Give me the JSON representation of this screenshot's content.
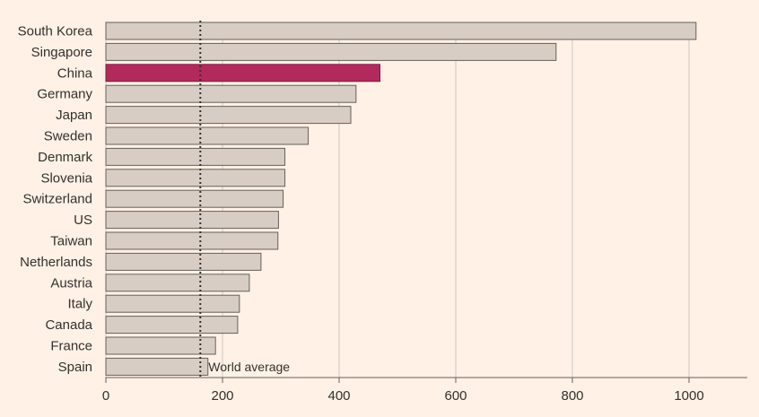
{
  "chart_data": {
    "type": "bar",
    "orientation": "horizontal",
    "categories": [
      "South Korea",
      "Singapore",
      "China",
      "Germany",
      "Japan",
      "Sweden",
      "Denmark",
      "Slovenia",
      "Switzerland",
      "US",
      "Taiwan",
      "Netherlands",
      "Austria",
      "Italy",
      "Canada",
      "France",
      "Spain"
    ],
    "values": [
      1012,
      772,
      470,
      429,
      420,
      347,
      307,
      307,
      304,
      296,
      295,
      266,
      246,
      229,
      226,
      188,
      175
    ],
    "highlight": "China",
    "xlim": [
      0,
      1100
    ],
    "xticks": [
      0,
      200,
      400,
      600,
      800,
      1000
    ],
    "reference_line": {
      "value": 162,
      "label": "World average"
    },
    "grid": "vertical",
    "colors": {
      "background": "#fff1e5",
      "bar": "#d8cdc4",
      "bar_edge": "#66605c",
      "highlight": "#b22a5b",
      "grid": "#cfc6bf",
      "text": "#33302e",
      "reference": "#33302e"
    }
  }
}
